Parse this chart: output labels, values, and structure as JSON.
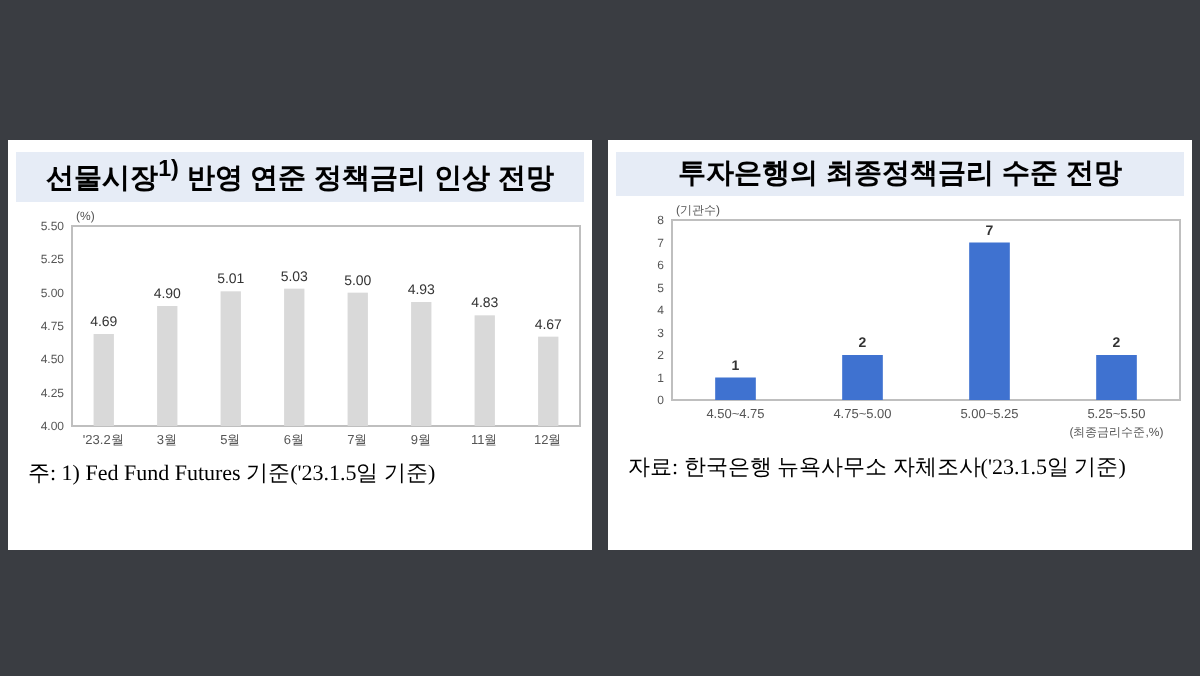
{
  "chart_data": [
    {
      "type": "bar",
      "title": "선물시장$^{1)}$ 반영 연준 정책금리 인상 전망",
      "ylabel": "(%)",
      "categories": [
        "'23.2월",
        "3월",
        "5월",
        "6월",
        "7월",
        "9월",
        "11월",
        "12월"
      ],
      "values": [
        4.69,
        4.9,
        5.01,
        5.03,
        5.0,
        4.93,
        4.83,
        4.67
      ],
      "color": "#d9d9d9",
      "ylim": [
        4.0,
        5.5
      ],
      "yticks": [
        {
          "value": 4.0,
          "label": "4.00"
        },
        {
          "value": 4.25,
          "label": "4.25"
        },
        {
          "value": 4.5,
          "label": "4.50"
        },
        {
          "value": 4.75,
          "label": "4.75"
        },
        {
          "value": 5.0,
          "label": "5.00"
        },
        {
          "value": 5.25,
          "label": "5.25"
        },
        {
          "value": 5.5,
          "label": "5.50"
        }
      ],
      "value_labels": [
        "4.69",
        "4.90",
        "5.01",
        "5.03",
        "5.00",
        "4.93",
        "4.83",
        "4.67"
      ],
      "annotations": [
        "주: 1) Fed Fund Futures 기준('23.1.5일 기준)"
      ]
    },
    {
      "type": "bar",
      "title": "투자은행의 최종정책금리 수준 전망",
      "ylabel": "(기관수)",
      "xlabel": "(최종금리수준,%)",
      "categories": [
        "4.50~4.75",
        "4.75~5.00",
        "5.00~5.25",
        "5.25~5.50"
      ],
      "values": [
        1,
        2,
        7,
        2
      ],
      "color": "#3f72d0",
      "ylim": [
        0,
        8
      ],
      "yticks": [
        0,
        1,
        2,
        3,
        4,
        5,
        6,
        7,
        8
      ],
      "data_labels": true,
      "annotations": [
        "자료: 한국은행 뉴욕사무소 자체조사('23.1.5일 기준)"
      ]
    }
  ]
}
